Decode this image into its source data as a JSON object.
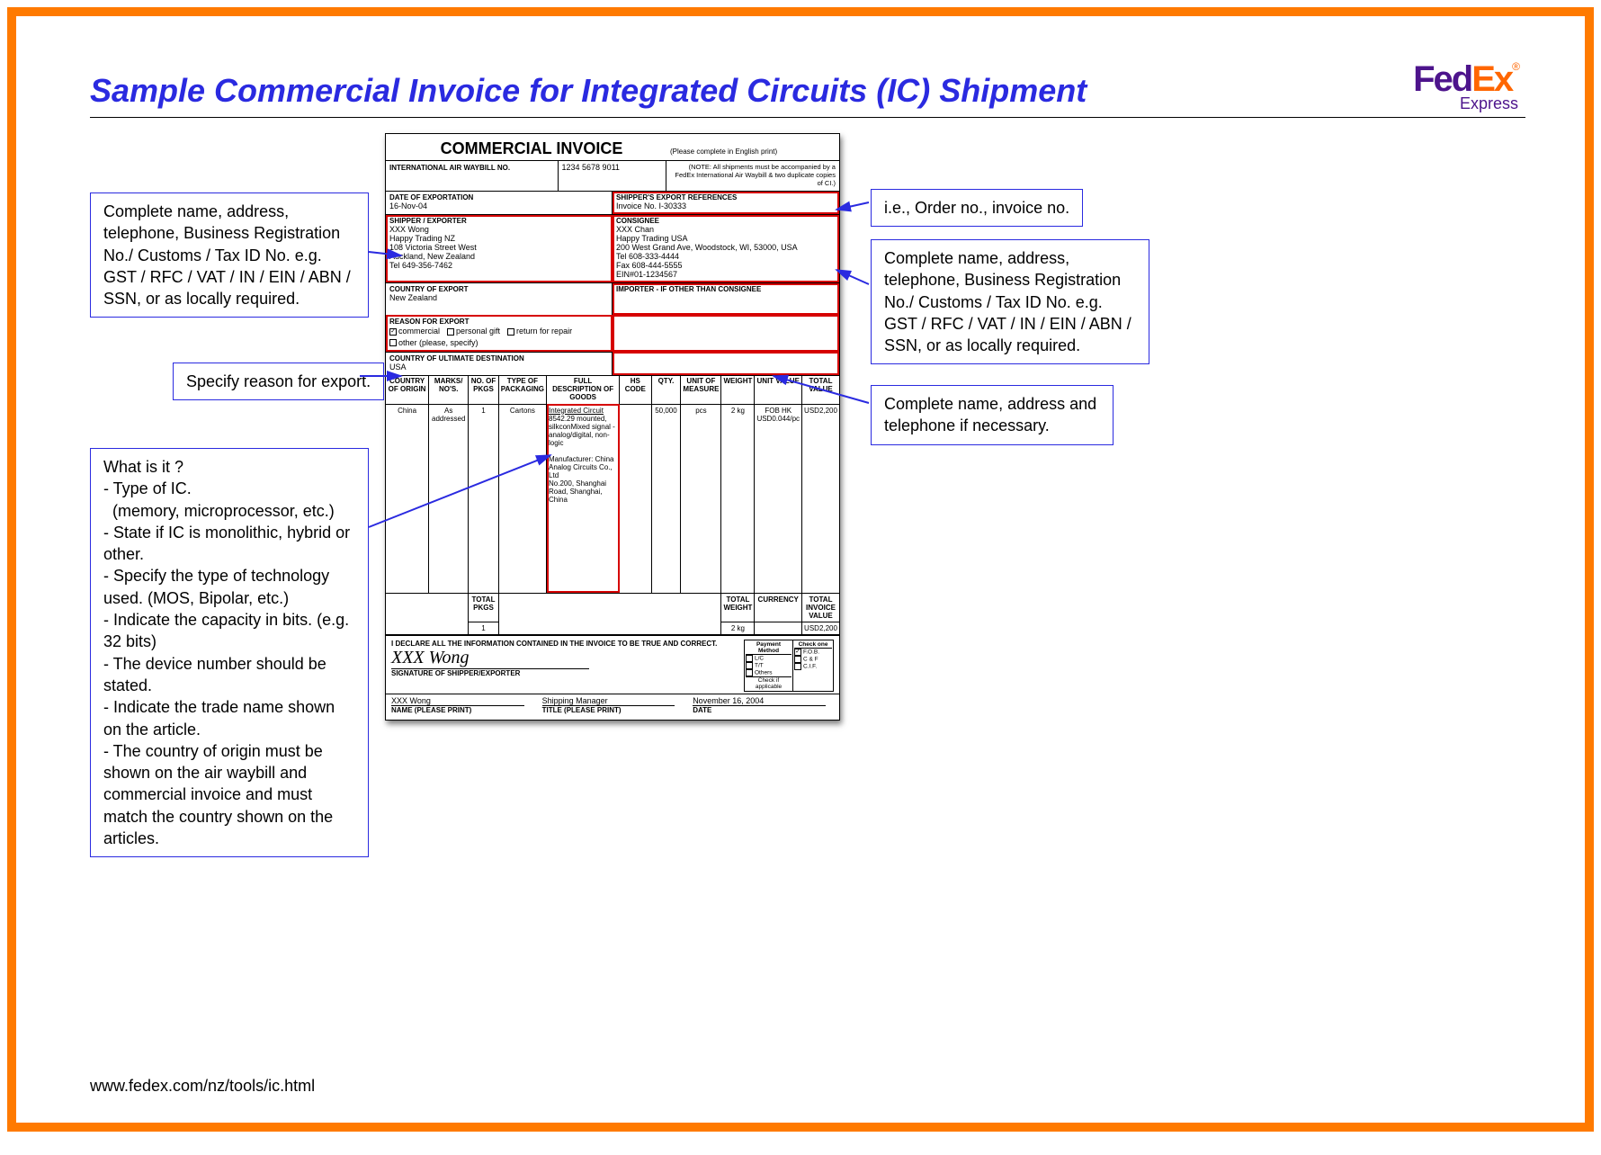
{
  "colors": {
    "frame": "#ff7a00",
    "accent": "#2a2ae0",
    "fedex_purple": "#4d148c",
    "fedex_orange": "#ff6600",
    "highlight": "#d60000"
  },
  "title": "Sample Commercial Invoice for Integrated Circuits (IC) Shipment",
  "logo": {
    "fed": "Fed",
    "ex": "Ex",
    "reg": "®",
    "sub": "Express"
  },
  "url": "www.fedex.com/nz/tools/ic.html",
  "invoice": {
    "title": "COMMERCIAL INVOICE",
    "print_note": "(Please complete in English print)",
    "waybill_label": "INTERNATIONAL AIR WAYBILL NO.",
    "waybill_no": "1234 5678 9011",
    "waybill_note": "(NOTE: All shipments must be accompanied by a FedEx International Air Waybill & two duplicate copies of CI.)",
    "date_label": "DATE OF EXPORTATION",
    "date_value": "16-Nov-04",
    "export_ref_label": "SHIPPER'S EXPORT REFERENCES",
    "export_ref_value": "Invoice No. I-30333",
    "shipper_label": "SHIPPER / EXPORTER",
    "shipper_lines": [
      "XXX Wong",
      "Happy Trading NZ",
      "108 Victoria Street West",
      "Auckland, New Zealand",
      "Tel 649-356-7462"
    ],
    "consignee_label": "CONSIGNEE",
    "consignee_lines": [
      "XXX Chan",
      "Happy Trading USA",
      "200 West Grand Ave, Woodstock, WI, 53000, USA",
      "Tel 608-333-4444",
      "Fax 608-444-5555",
      "EIN#01-1234567"
    ],
    "country_export_label": "COUNTRY OF EXPORT",
    "country_export_value": "New Zealand",
    "importer_label": "IMPORTER - IF OTHER THAN CONSIGNEE",
    "reason_label": "REASON FOR EXPORT",
    "reason_options": [
      {
        "label": "commercial",
        "checked": true
      },
      {
        "label": "personal gift",
        "checked": false
      },
      {
        "label": "return for repair",
        "checked": false
      },
      {
        "label": "other (please, specify)",
        "checked": false
      }
    ],
    "dest_label": "COUNTRY OF ULTIMATE DESTINATION",
    "dest_value": "USA",
    "table": {
      "headers": [
        "COUNTRY OF ORIGIN",
        "MARKS/ NO'S.",
        "NO. OF PKGS",
        "TYPE OF PACKAGING",
        "FULL DESCRIPTION OF GOODS",
        "HS CODE",
        "QTY.",
        "UNIT OF MEASURE",
        "WEIGHT",
        "UNIT VALUE",
        "TOTAL VALUE"
      ],
      "row": {
        "origin": "China",
        "marks": "As addressed",
        "pkgs": "1",
        "type": "Cartons",
        "desc_title": "Integrated Circuit",
        "desc_body": "8542.29 mounted, silkconMixed signal - analog/digital, non-logic\n\nManufacturer: China Analog Circuits Co., Ltd\nNo.200, Shanghai Road, Shanghai, China",
        "hs": "",
        "qty": "50,000",
        "uom": "pcs",
        "weight": "2 kg",
        "unit_value": "FOB HK USD0.044/pc",
        "total_value": "USD2,200"
      },
      "totals": {
        "total_pkgs_label": "TOTAL PKGS",
        "total_pkgs": "1",
        "total_weight_label": "TOTAL WEIGHT",
        "total_weight": "2 kg",
        "currency_label": "CURRENCY",
        "total_value_label": "TOTAL INVOICE VALUE",
        "total_value": "USD2,200"
      }
    },
    "declare": "I DECLARE ALL THE INFORMATION CONTAINED IN THE INVOICE TO BE TRUE AND CORRECT.",
    "signature": "XXX Wong",
    "sig_label": "SIGNATURE OF SHIPPER/EXPORTER",
    "name_print": "XXX Wong",
    "name_label": "NAME (PLEASE PRINT)",
    "title_print": "Shipping Manager",
    "title_label": "TITLE (PLEASE PRINT)",
    "date_print": "November 16, 2004",
    "date_print_label": "DATE",
    "payment": {
      "pm_label": "Payment Method",
      "pm_items": [
        "L/C",
        "T/T",
        "Others"
      ],
      "pm_note": "Check if applicable",
      "co_label": "Check one",
      "co_items": [
        "F.O.B.",
        "C & F",
        "C.I.F."
      ]
    }
  },
  "callouts": {
    "c1": "Complete name, address, telephone, Business Registration No./ Customs / Tax ID No. e.g. GST / RFC / VAT / IN / EIN / ABN / SSN, or as locally required.",
    "c2": "Specify reason for export.",
    "c3": "i.e., Order no., invoice no.",
    "c4": "Complete name, address, telephone, Business Registration No./ Customs / Tax ID No. e.g. GST / RFC / VAT / IN / EIN / ABN / SSN, or as locally required.",
    "c5": "Complete name, address and telephone if necessary.",
    "c6_title": "What is it ?",
    "c6_lines": [
      "- Type of IC.",
      "  (memory, microprocessor, etc.)",
      "- State if IC is monolithic, hybrid or other.",
      "- Specify the type of technology used. (MOS, Bipolar, etc.)",
      "- Indicate the capacity in bits. (e.g. 32 bits)",
      "- The device number should be stated.",
      "- Indicate the trade name shown on the article.",
      "- The country of origin must be shown on the air waybill and commercial invoice and must match the country shown on the articles."
    ]
  }
}
